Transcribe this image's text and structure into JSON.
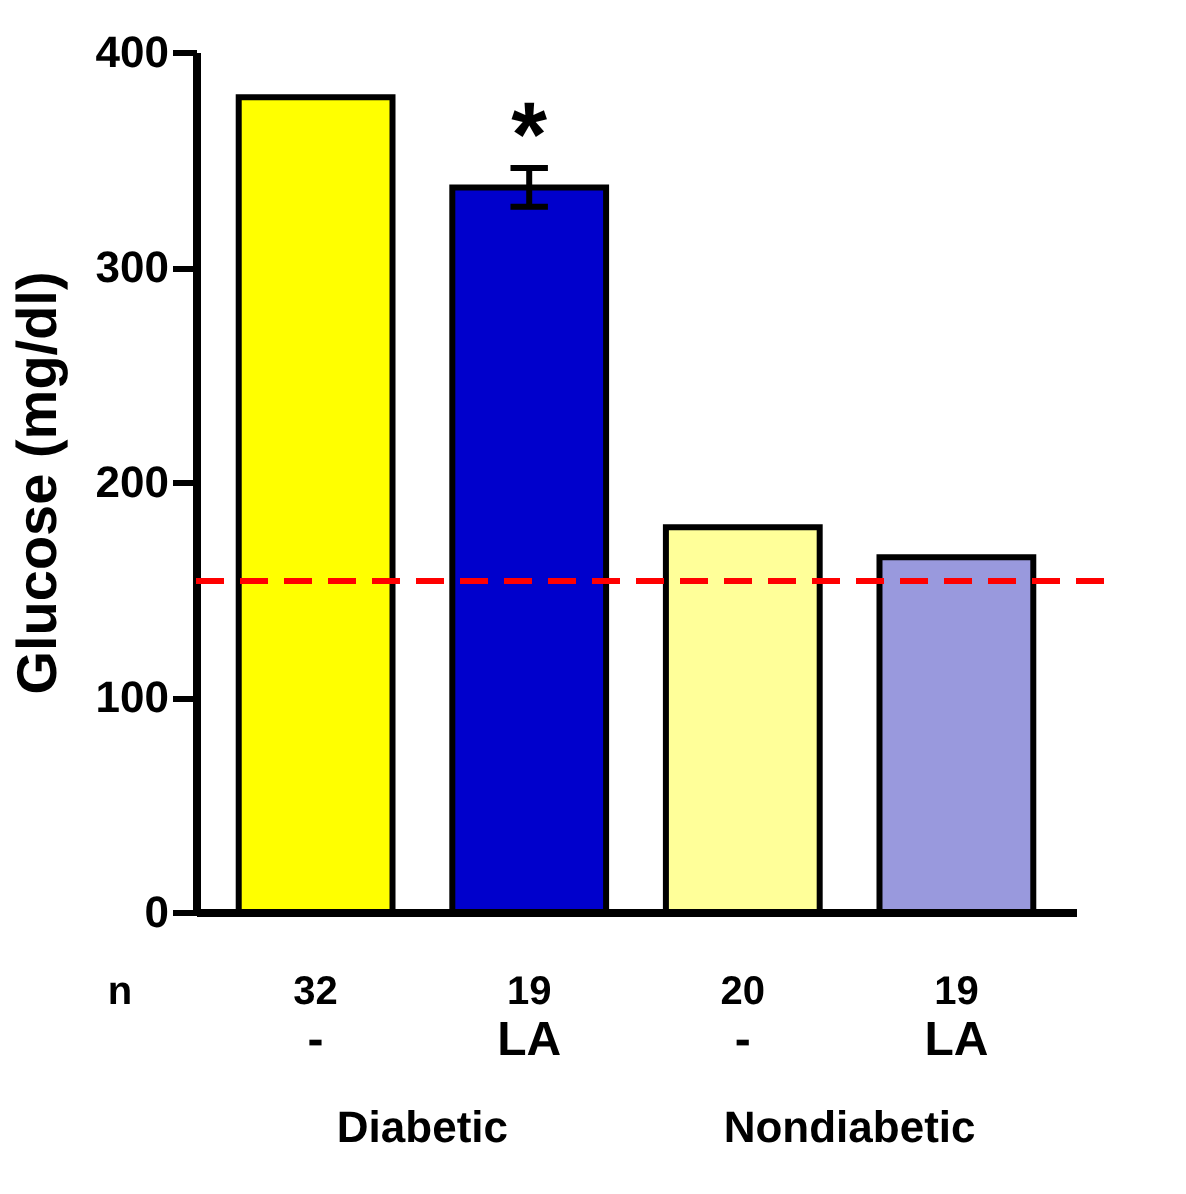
{
  "chart_data": {
    "type": "bar",
    "ylabel": "Glucose (mg/dl)",
    "categories": [
      "-",
      "LA",
      "-",
      "LA"
    ],
    "values": [
      379,
      337,
      179,
      165
    ],
    "colors": [
      "#ffff00",
      "#0000cc",
      "#ffff99",
      "#9999dd"
    ],
    "errors": [
      null,
      9,
      null,
      null
    ],
    "ylim": [
      0,
      400
    ],
    "yticks": [
      0,
      100,
      200,
      300,
      400
    ],
    "grid": false,
    "ref_lines": [
      {
        "axis": "y",
        "value": 154,
        "color": "#ff0000",
        "line_style": "dashed"
      }
    ],
    "annotations": [
      "*",
      "n",
      "32",
      "19",
      "20",
      "19",
      "Diabetic",
      "Nondiabetic"
    ]
  }
}
